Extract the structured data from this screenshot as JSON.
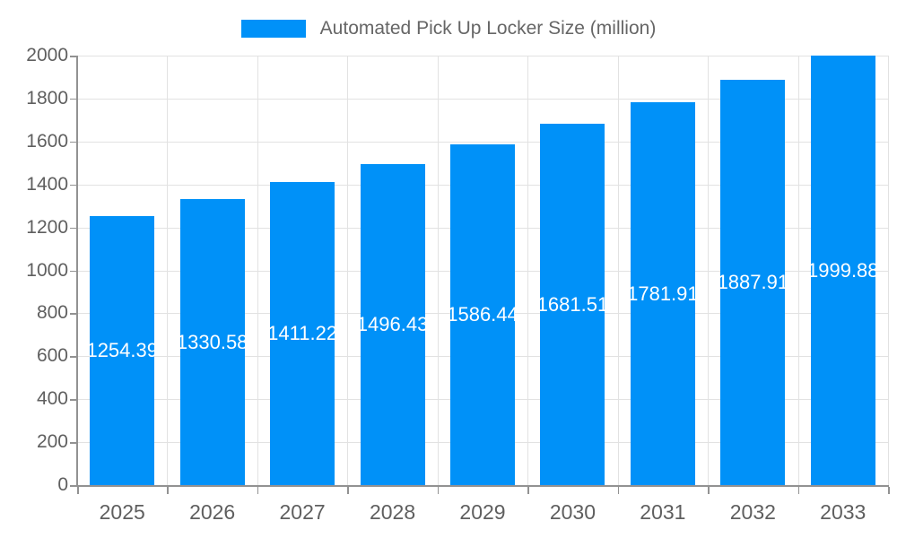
{
  "legend": {
    "label": "Automated Pick Up Locker Size (million)"
  },
  "colors": {
    "bar": "#0091f8",
    "axis_text": "#5f5f5f",
    "legend_text": "#666666",
    "gridline": "#e2e2e2",
    "axis_line": "#929292",
    "bar_label_text": "#ffffff"
  },
  "chart_data": {
    "type": "bar",
    "title": "",
    "legend_entries": [
      "Automated Pick Up Locker Size (million)"
    ],
    "legend_position": "top",
    "categories": [
      "2025",
      "2026",
      "2027",
      "2028",
      "2029",
      "2030",
      "2031",
      "2032",
      "2033"
    ],
    "series": [
      {
        "name": "Automated Pick Up Locker Size (million)",
        "values": [
          1254.39,
          1330.58,
          1411.22,
          1496.43,
          1586.44,
          1681.51,
          1781.91,
          1887.91,
          1999.88
        ]
      }
    ],
    "bar_labels": [
      "1254.39",
      "1330.58",
      "1411.22",
      "1496.43",
      "1586.44",
      "1681.51",
      "1781.91",
      "1887.91",
      "1999.88"
    ],
    "xlabel": "",
    "ylabel": "",
    "ylim": [
      0,
      2000
    ],
    "ytick_interval": 200,
    "yticks": [
      "0",
      "200",
      "400",
      "600",
      "800",
      "1000",
      "1200",
      "1400",
      "1600",
      "1800",
      "2000"
    ],
    "grid": true
  }
}
